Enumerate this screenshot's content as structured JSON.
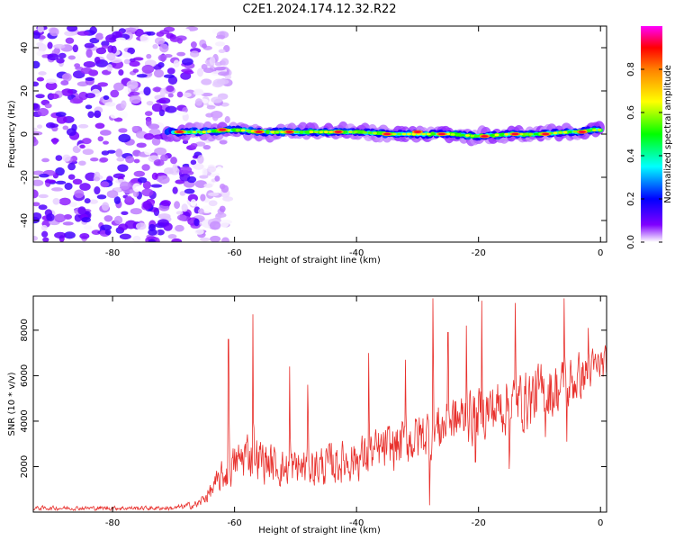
{
  "title": "C2E1.2024.174.12.32.R22",
  "chart_data": [
    {
      "type": "heatmap",
      "xlabel": "Height of straight line (km)",
      "ylabel": "Frequency (Hz)",
      "xlim": [
        -93,
        1
      ],
      "ylim": [
        -50,
        50
      ],
      "xticks": [
        -80,
        -60,
        -40,
        -20,
        0
      ],
      "yticks": [
        40,
        20,
        0,
        -20,
        -40
      ],
      "colorbar": {
        "label": "Normalized spectral amplitude",
        "range": [
          0,
          1
        ],
        "ticks": [
          0.0,
          0.2,
          0.4,
          0.6,
          0.8
        ],
        "tick_labels": [
          "0.0",
          "0.2",
          "0.4",
          "0.6",
          "0.8"
        ],
        "colormap": [
          "#ffffff",
          "#8000ff",
          "#0000ff",
          "#00ffff",
          "#00ff00",
          "#ffff00",
          "#ff8000",
          "#ff0000",
          "#ff00ff"
        ]
      },
      "noise_region": {
        "x_from": -93,
        "x_to": -66,
        "freq_from": -50,
        "freq_to": 50,
        "amplitude_max": 0.2
      },
      "ridge": [
        {
          "x": -71,
          "freq": 1
        },
        {
          "x": -65,
          "freq": 1
        },
        {
          "x": -60,
          "freq": 2
        },
        {
          "x": -55,
          "freq": 1
        },
        {
          "x": -50,
          "freq": 1
        },
        {
          "x": -45,
          "freq": 1
        },
        {
          "x": -40,
          "freq": 1
        },
        {
          "x": -35,
          "freq": 0
        },
        {
          "x": -30,
          "freq": 0
        },
        {
          "x": -25,
          "freq": 0
        },
        {
          "x": -20,
          "freq": -1
        },
        {
          "x": -15,
          "freq": 0
        },
        {
          "x": -10,
          "freq": 0
        },
        {
          "x": -5,
          "freq": 1
        },
        {
          "x": 0,
          "freq": 2
        }
      ],
      "peaks": [
        {
          "x": -69,
          "freq": 1
        },
        {
          "x": -62,
          "freq": 2
        },
        {
          "x": -56,
          "freq": 1
        },
        {
          "x": -51,
          "freq": 1
        },
        {
          "x": -43,
          "freq": 1
        },
        {
          "x": -35,
          "freq": 0
        },
        {
          "x": -30,
          "freq": 1
        },
        {
          "x": -26,
          "freq": 0
        },
        {
          "x": -19,
          "freq": -1
        },
        {
          "x": -14,
          "freq": 0
        },
        {
          "x": -9,
          "freq": 0
        },
        {
          "x": -3,
          "freq": 1
        }
      ]
    },
    {
      "type": "line",
      "xlabel": "Height of straight line (km)",
      "ylabel": "SNR (10 * v/v)",
      "xlim": [
        -93,
        1
      ],
      "ylim": [
        0,
        9500
      ],
      "xticks": [
        -80,
        -60,
        -40,
        -20,
        0
      ],
      "yticks": [
        2000,
        4000,
        6000,
        8000
      ],
      "color": "#e8302c",
      "envelope": [
        {
          "x": -93,
          "lo": 50,
          "hi": 300
        },
        {
          "x": -70,
          "lo": 50,
          "hi": 300
        },
        {
          "x": -66,
          "lo": 100,
          "hi": 600
        },
        {
          "x": -64,
          "lo": 400,
          "hi": 1400
        },
        {
          "x": -62,
          "lo": 600,
          "hi": 2500
        },
        {
          "x": -58,
          "lo": 1200,
          "hi": 4000
        },
        {
          "x": -52,
          "lo": 800,
          "hi": 3000
        },
        {
          "x": -45,
          "lo": 800,
          "hi": 3300
        },
        {
          "x": -38,
          "lo": 1200,
          "hi": 3800
        },
        {
          "x": -32,
          "lo": 1600,
          "hi": 4500
        },
        {
          "x": -25,
          "lo": 2300,
          "hi": 5500
        },
        {
          "x": -18,
          "lo": 2800,
          "hi": 6200
        },
        {
          "x": -12,
          "lo": 3200,
          "hi": 6800
        },
        {
          "x": -6,
          "lo": 3800,
          "hi": 7200
        },
        {
          "x": 0,
          "lo": 5500,
          "hi": 7500
        }
      ],
      "spikes": [
        {
          "x": -61,
          "y": 7600
        },
        {
          "x": -57,
          "y": 8700
        },
        {
          "x": -51,
          "y": 6400
        },
        {
          "x": -48,
          "y": 5600
        },
        {
          "x": -38,
          "y": 7000
        },
        {
          "x": -32,
          "y": 6700
        },
        {
          "x": -27.5,
          "y": 9400
        },
        {
          "x": -25,
          "y": 7900
        },
        {
          "x": -22,
          "y": 8200
        },
        {
          "x": -19.5,
          "y": 9300
        },
        {
          "x": -14,
          "y": 9200
        },
        {
          "x": -6,
          "y": 9400
        },
        {
          "x": -2,
          "y": 8100
        }
      ],
      "dips": [
        {
          "x": -28,
          "y": 300
        },
        {
          "x": -20.5,
          "y": 2200
        },
        {
          "x": -15,
          "y": 1900
        },
        {
          "x": -9,
          "y": 3300
        },
        {
          "x": -5.5,
          "y": 3100
        }
      ]
    }
  ]
}
